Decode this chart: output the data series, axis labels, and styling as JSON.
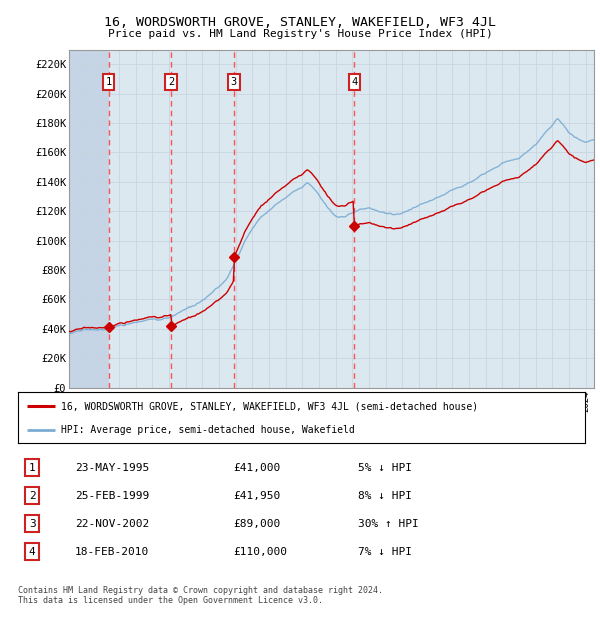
{
  "title": "16, WORDSWORTH GROVE, STANLEY, WAKEFIELD, WF3 4JL",
  "subtitle": "Price paid vs. HM Land Registry's House Price Index (HPI)",
  "ylim": [
    0,
    230000
  ],
  "yticks": [
    0,
    20000,
    40000,
    60000,
    80000,
    100000,
    120000,
    140000,
    160000,
    180000,
    200000,
    220000
  ],
  "ytick_labels": [
    "£0",
    "£20K",
    "£40K",
    "£60K",
    "£80K",
    "£100K",
    "£120K",
    "£140K",
    "£160K",
    "£180K",
    "£200K",
    "£220K"
  ],
  "hpi_color": "#7aadd4",
  "price_color": "#cc0000",
  "grid_color": "#c8d4e0",
  "bg_color": "#dce8f0",
  "transaction_dates": [
    1995.38,
    1999.12,
    2002.89,
    2010.12
  ],
  "transaction_prices": [
    41000,
    41950,
    89000,
    110000
  ],
  "transaction_labels": [
    "1",
    "2",
    "3",
    "4"
  ],
  "transactions_info": [
    {
      "num": "1",
      "date": "23-MAY-1995",
      "price": "£41,000",
      "hpi": "5% ↓ HPI"
    },
    {
      "num": "2",
      "date": "25-FEB-1999",
      "price": "£41,950",
      "hpi": "8% ↓ HPI"
    },
    {
      "num": "3",
      "date": "22-NOV-2002",
      "price": "£89,000",
      "hpi": "30% ↑ HPI"
    },
    {
      "num": "4",
      "date": "18-FEB-2010",
      "price": "£110,000",
      "hpi": "7% ↓ HPI"
    }
  ],
  "legend_line1": "16, WORDSWORTH GROVE, STANLEY, WAKEFIELD, WF3 4JL (semi-detached house)",
  "legend_line2": "HPI: Average price, semi-detached house, Wakefield",
  "footer": "Contains HM Land Registry data © Crown copyright and database right 2024.\nThis data is licensed under the Open Government Licence v3.0.",
  "xmin": 1993.0,
  "xmax": 2024.5
}
